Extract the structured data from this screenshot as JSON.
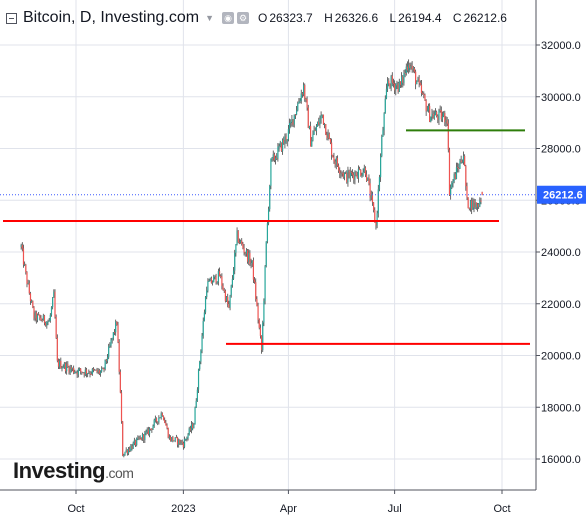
{
  "header": {
    "title": "Bitcoin, D, Investing.com",
    "ohlc": [
      {
        "k": "O",
        "v": "26323.7"
      },
      {
        "k": "H",
        "v": "26326.6"
      },
      {
        "k": "L",
        "v": "26194.4"
      },
      {
        "k": "C",
        "v": "26212.6"
      }
    ]
  },
  "logo": {
    "main": "Investing",
    "suffix": ".com"
  },
  "colors": {
    "up": "#26a69a",
    "down": "#ef5350",
    "wick": "#444444",
    "support": "#ff0000",
    "resistance": "#2e7d0a",
    "price_line": "#3d5afe",
    "price_label_bg": "#2962ff",
    "grid": "#e0e3eb"
  },
  "chart_data": {
    "type": "candlestick",
    "title": "Bitcoin, D, Investing.com",
    "ylim": [
      15000,
      33000
    ],
    "y_ticks": [
      "16000.0",
      "18000.0",
      "20000.0",
      "22000.0",
      "24000.0",
      "26000.0",
      "28000.0",
      "30000.0",
      "32000.0"
    ],
    "x_ticks": [
      "Oct",
      "2023",
      "Apr",
      "Jul",
      "Oct"
    ],
    "last_price": "26212.6",
    "horizontal_lines": [
      {
        "value": 25200,
        "color": "red",
        "from": "2022-08",
        "to": "2023-09"
      },
      {
        "value": 20450,
        "color": "red",
        "from": "2023-02",
        "to": "2023-10"
      },
      {
        "value": 28700,
        "color": "green",
        "from": "2023-07",
        "to": "2023-09"
      }
    ],
    "path_points": [
      [
        "2022-08-15",
        24200
      ],
      [
        "2022-08-19",
        23100
      ],
      [
        "2022-08-26",
        21500
      ],
      [
        "2022-09-08",
        21300
      ],
      [
        "2022-09-12",
        22300
      ],
      [
        "2022-09-15",
        19700
      ],
      [
        "2022-10-01",
        19400
      ],
      [
        "2022-10-24",
        19350
      ],
      [
        "2022-11-05",
        21300
      ],
      [
        "2022-11-08",
        18500
      ],
      [
        "2022-11-10",
        16200
      ],
      [
        "2022-12-01",
        17000
      ],
      [
        "2022-12-14",
        17800
      ],
      [
        "2022-12-20",
        16800
      ],
      [
        "2023-01-01",
        16600
      ],
      [
        "2023-01-10",
        17400
      ],
      [
        "2023-01-21",
        22700
      ],
      [
        "2023-02-01",
        23100
      ],
      [
        "2023-02-09",
        21800
      ],
      [
        "2023-02-16",
        24600
      ],
      [
        "2023-03-01",
        23500
      ],
      [
        "2023-03-09",
        20200
      ],
      [
        "2023-03-13",
        24300
      ],
      [
        "2023-03-17",
        27400
      ],
      [
        "2023-03-31",
        28500
      ],
      [
        "2023-04-14",
        30400
      ],
      [
        "2023-04-20",
        28300
      ],
      [
        "2023-04-30",
        29300
      ],
      [
        "2023-05-10",
        27600
      ],
      [
        "2023-05-20",
        26900
      ],
      [
        "2023-06-06",
        27200
      ],
      [
        "2023-06-15",
        25000
      ],
      [
        "2023-06-20",
        28300
      ],
      [
        "2023-06-25",
        30600
      ],
      [
        "2023-07-06",
        30400
      ],
      [
        "2023-07-13",
        31400
      ],
      [
        "2023-07-31",
        29300
      ],
      [
        "2023-08-15",
        29200
      ],
      [
        "2023-08-17",
        26400
      ],
      [
        "2023-08-29",
        27800
      ],
      [
        "2023-09-01",
        25900
      ],
      [
        "2023-09-10",
        25800
      ],
      [
        "2023-09-14",
        26212
      ]
    ]
  }
}
